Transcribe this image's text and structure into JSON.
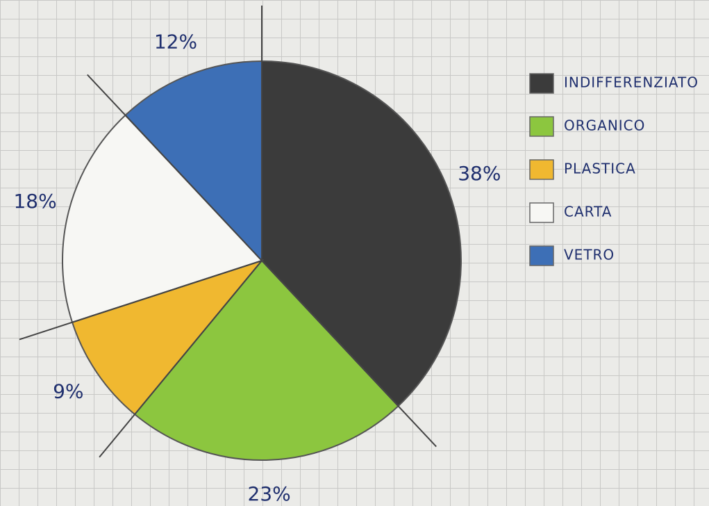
{
  "chart_data": {
    "type": "pie",
    "categories": [
      "INDIFFERENZIATO",
      "ORGANICO",
      "PLASTICA",
      "CARTA",
      "VETRO"
    ],
    "values": [
      38,
      23,
      9,
      18,
      12
    ],
    "value_labels": [
      "38%",
      "23%",
      "9%",
      "18%",
      "12%"
    ],
    "colors": [
      "#3b3b3b",
      "#8cc63f",
      "#f0b830",
      "#f7f7f4",
      "#3d6fb6"
    ],
    "annotation": "0",
    "legend": "right"
  }
}
